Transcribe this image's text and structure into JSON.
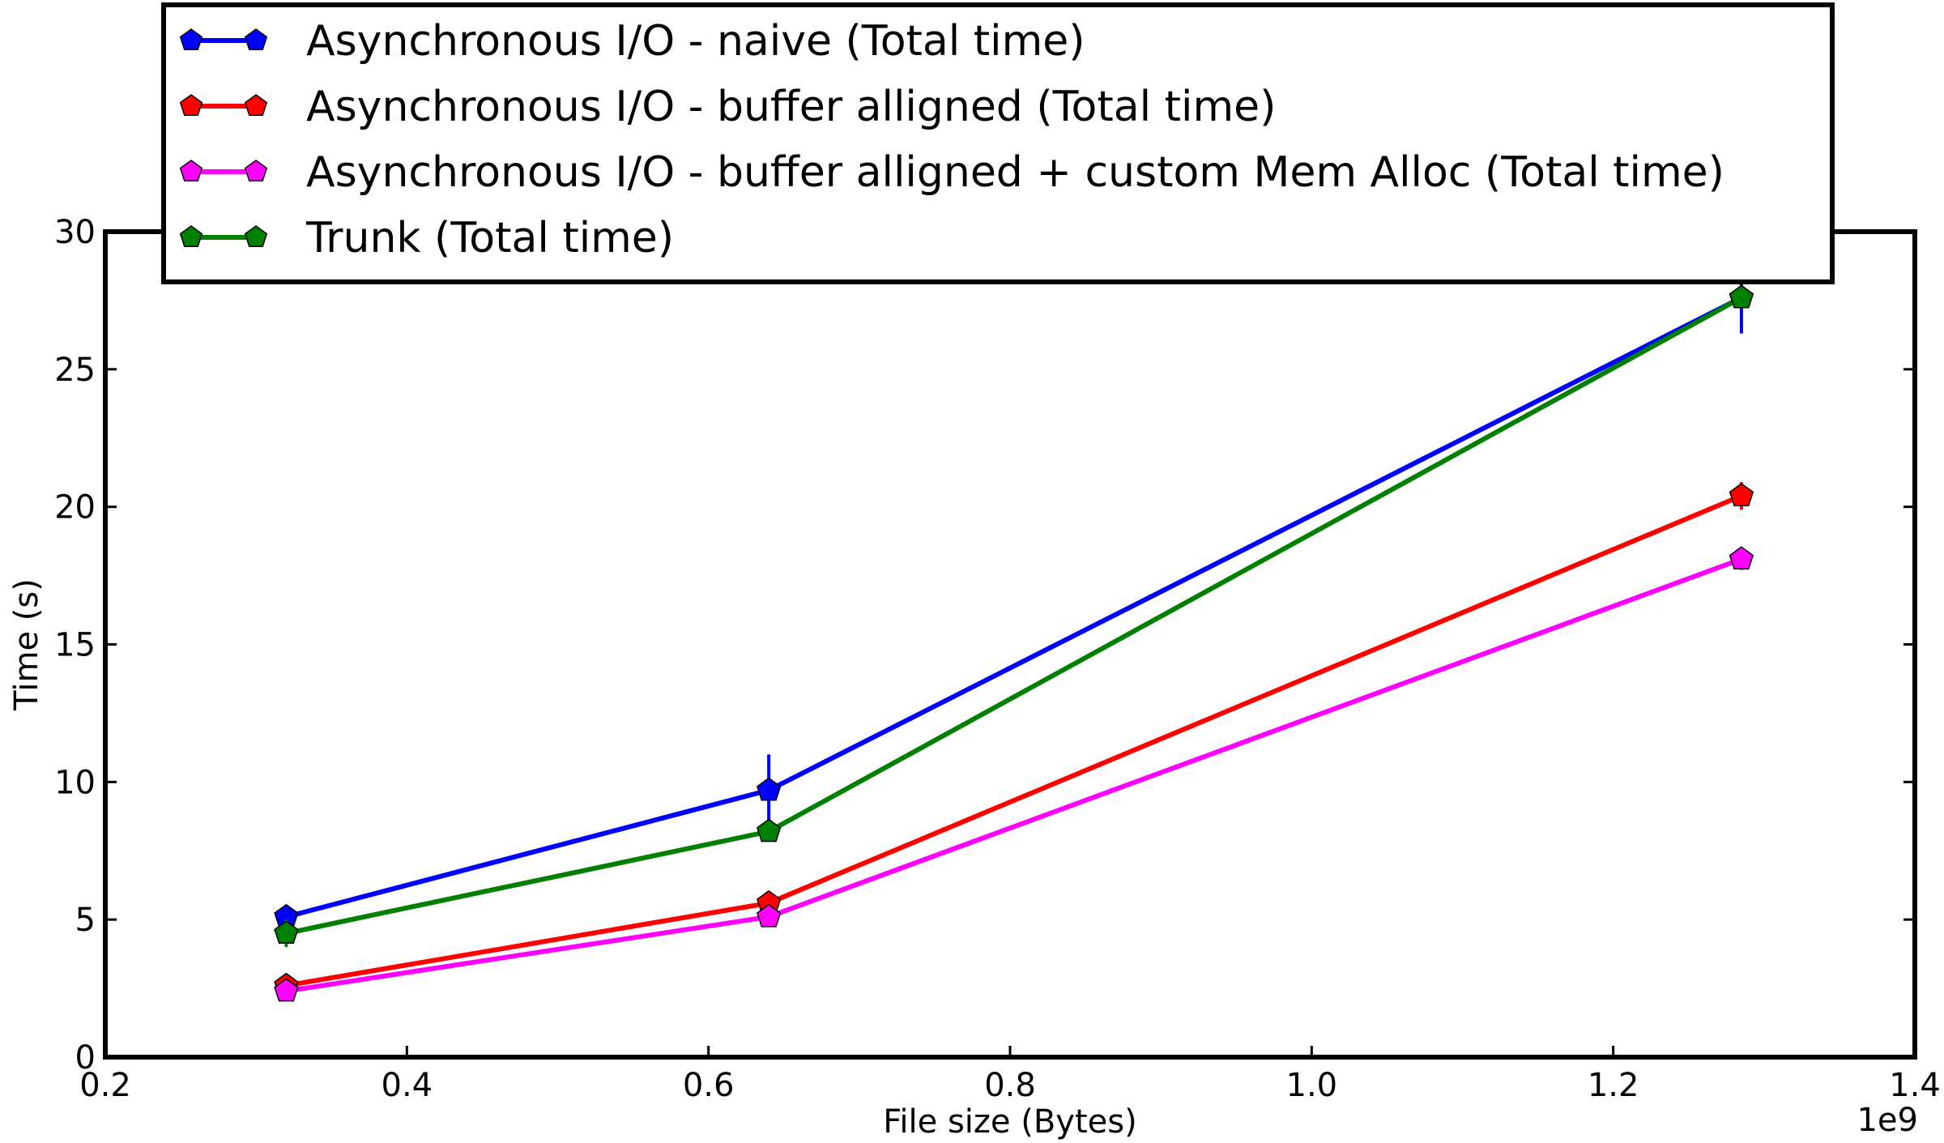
{
  "chart_data": {
    "type": "line",
    "xlabel": "File size (Bytes)",
    "ylabel": "Time (s)",
    "x_offset_label": "1e9",
    "xlim": [
      0.2,
      1.4
    ],
    "ylim": [
      0,
      30
    ],
    "x_ticks": [
      0.2,
      0.4,
      0.6,
      0.8,
      1.0,
      1.2,
      1.4
    ],
    "x_tick_labels": [
      "0.2",
      "0.4",
      "0.6",
      "0.8",
      "1.0",
      "1.2",
      "1.4"
    ],
    "y_ticks": [
      0,
      5,
      10,
      15,
      20,
      25,
      30
    ],
    "y_tick_labels": [
      "0",
      "5",
      "10",
      "15",
      "20",
      "25",
      "30"
    ],
    "grid": false,
    "legend_position": "top",
    "x": [
      0.32,
      0.64,
      1.285
    ],
    "series": [
      {
        "name": "Asynchronous I/O - naive (Total time)",
        "color": "#0000ff",
        "marker": "pentagon",
        "values": [
          5.1,
          9.7,
          27.6
        ],
        "errors": [
          0.4,
          1.3,
          1.3
        ]
      },
      {
        "name": "Asynchronous I/O - buffer alligned (Total time)",
        "color": "#ff0000",
        "marker": "pentagon",
        "values": [
          2.6,
          5.6,
          20.4
        ],
        "errors": [
          0.2,
          0.3,
          0.5
        ]
      },
      {
        "name": "Asynchronous I/O - buffer alligned + custom Mem Alloc (Total time)",
        "color": "#ff00ff",
        "marker": "pentagon",
        "values": [
          2.4,
          5.1,
          18.1
        ],
        "errors": [
          0.2,
          0.2,
          0.4
        ]
      },
      {
        "name": "Trunk (Total time)",
        "color": "#008000",
        "marker": "pentagon",
        "values": [
          4.5,
          8.2,
          27.6
        ],
        "errors": [
          0.5,
          0.3,
          0.3
        ]
      }
    ]
  }
}
